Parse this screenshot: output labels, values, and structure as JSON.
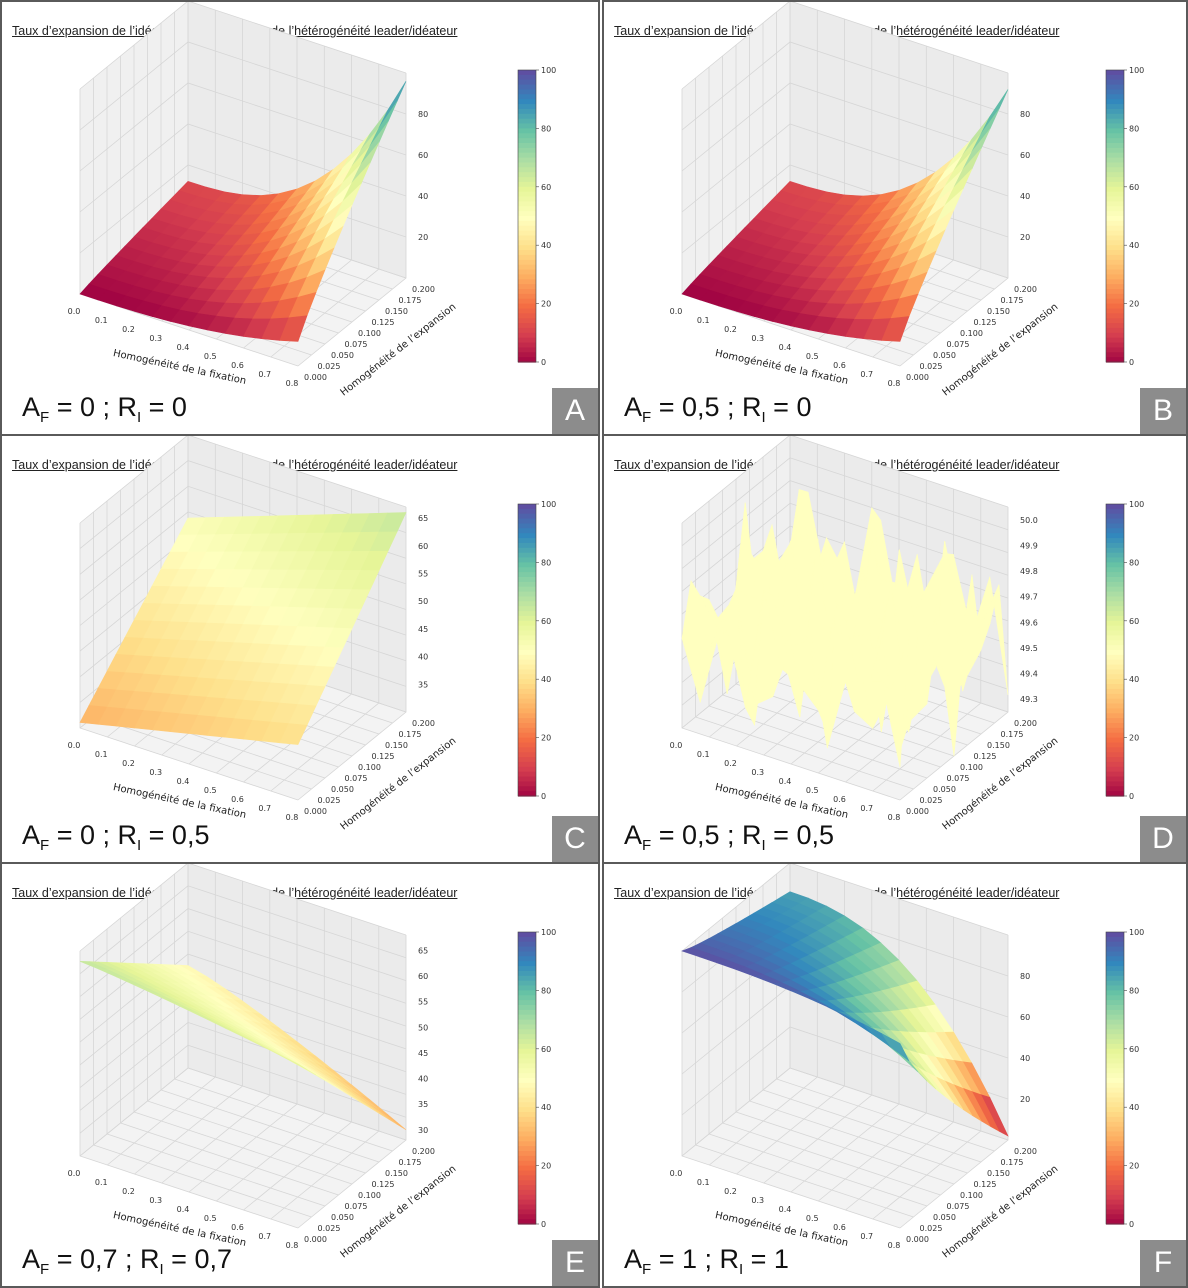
{
  "figure": {
    "title": "Taux d’expansion de l’idéateur (%) en fonction de l’hétérogénéité leader/idéateur",
    "xlabel": "Homogénéité de la fixation",
    "ylabel": "Homogénéité de l’expansion",
    "x_ticks": [
      "0.0",
      "0.1",
      "0.2",
      "0.3",
      "0.4",
      "0.5",
      "0.6",
      "0.7",
      "0.8"
    ],
    "y_ticks": [
      "0.000",
      "0.025",
      "0.050",
      "0.075",
      "0.100",
      "0.125",
      "0.150",
      "0.175",
      "0.200"
    ],
    "colorbar_ticks": [
      "0",
      "20",
      "40",
      "60",
      "80",
      "100"
    ],
    "colormap": [
      "#9e0142",
      "#d53e4f",
      "#f46d43",
      "#fdae61",
      "#fee08b",
      "#ffffbf",
      "#e6f598",
      "#abdda4",
      "#66c2a5",
      "#3288bd",
      "#5e4fa2"
    ]
  },
  "chart_data": [
    {
      "panel": "A",
      "type": "surface",
      "caption": {
        "a": "A",
        "a_sub": "F",
        "a_val": " = 0 ; ",
        "r": "R",
        "r_sub": "I",
        "r_val": " = 0"
      },
      "z_ticks": [
        "20",
        "40",
        "60",
        "80"
      ],
      "zlim": [
        0,
        100
      ],
      "x": [
        0.0,
        0.8
      ],
      "y": [
        0.0,
        0.2
      ],
      "z_corners": {
        "x0_y0": 0,
        "x1_y0": 12,
        "x0_y1": 12,
        "x1_y1": 96
      },
      "clip_above": 96,
      "x_curve": 2.6,
      "y_curve": 0.9
    },
    {
      "panel": "B",
      "type": "surface",
      "caption": {
        "a": "A",
        "a_sub": "F",
        "a_val": " = 0,5 ; ",
        "r": "R",
        "r_sub": "I",
        "r_val": " = 0"
      },
      "z_ticks": [
        "20",
        "40",
        "60",
        "80"
      ],
      "zlim": [
        0,
        100
      ],
      "x": [
        0.0,
        0.8
      ],
      "y": [
        0.0,
        0.2
      ],
      "z_corners": {
        "x0_y0": 0,
        "x1_y0": 12,
        "x0_y1": 12,
        "x1_y1": 92
      },
      "clip_above": 92,
      "x_curve": 2.6,
      "y_curve": 0.9
    },
    {
      "panel": "C",
      "type": "surface",
      "caption": {
        "a": "A",
        "a_sub": "F",
        "a_val": " = 0 ; ",
        "r": "R",
        "r_sub": "I",
        "r_val": " = 0,5"
      },
      "z_ticks": [
        "35",
        "40",
        "45",
        "50",
        "55",
        "60",
        "65"
      ],
      "zlim": [
        30,
        67
      ],
      "x": [
        0.0,
        0.8
      ],
      "y": [
        0.0,
        0.2
      ],
      "z_corners": {
        "x0_y0": 31,
        "x1_y0": 40,
        "x0_y1": 52,
        "x1_y1": 66
      },
      "clip_above": 100,
      "x_curve": 1.0,
      "y_curve": 1.0
    },
    {
      "panel": "D",
      "type": "surface",
      "caption": {
        "a": "A",
        "a_sub": "F",
        "a_val": " = 0,5 ; ",
        "r": "R",
        "r_sub": "I",
        "r_val": " = 0,5"
      },
      "z_ticks": [
        "49.3",
        "49.4",
        "49.5",
        "49.6",
        "49.7",
        "49.8",
        "49.9",
        "50.0"
      ],
      "zlim": [
        49.25,
        50.05
      ],
      "x": [
        0.0,
        0.8
      ],
      "y": [
        0.0,
        0.2
      ],
      "z_corners": {
        "x0_y0": 49.6,
        "x1_y0": 49.6,
        "x0_y1": 49.6,
        "x1_y1": 49.6
      },
      "noise": 0.3,
      "clip_above": 100,
      "x_curve": 1.0,
      "y_curve": 1.0
    },
    {
      "panel": "E",
      "type": "surface",
      "caption": {
        "a": "A",
        "a_sub": "F",
        "a_val": " = 0,7 ; ",
        "r": "R",
        "r_sub": "I",
        "r_val": " = 0,7"
      },
      "z_ticks": [
        "30",
        "35",
        "40",
        "45",
        "50",
        "55",
        "60",
        "65"
      ],
      "zlim": [
        28,
        68
      ],
      "x": [
        0.0,
        0.8
      ],
      "y": [
        0.0,
        0.2
      ],
      "z_corners": {
        "x0_y0": 66,
        "x1_y0": 60,
        "x0_y1": 48,
        "x1_y1": 30
      },
      "clip_above": 100,
      "x_curve": 1.2,
      "y_curve": 1.0
    },
    {
      "panel": "F",
      "type": "surface",
      "caption": {
        "a": "A",
        "a_sub": "F",
        "a_val": " = 1 ; ",
        "r": "R",
        "r_sub": "I",
        "r_val": " = 1"
      },
      "z_ticks": [
        "20",
        "40",
        "60",
        "80"
      ],
      "zlim": [
        0,
        100
      ],
      "x": [
        0.0,
        0.8
      ],
      "y": [
        0.0,
        0.2
      ],
      "z_corners": {
        "x0_y0": 100,
        "x1_y0": 90,
        "x0_y1": 86,
        "x1_y1": 2
      },
      "clip_above": 100,
      "x_curve": 2.4,
      "y_curve": 0.8
    }
  ]
}
